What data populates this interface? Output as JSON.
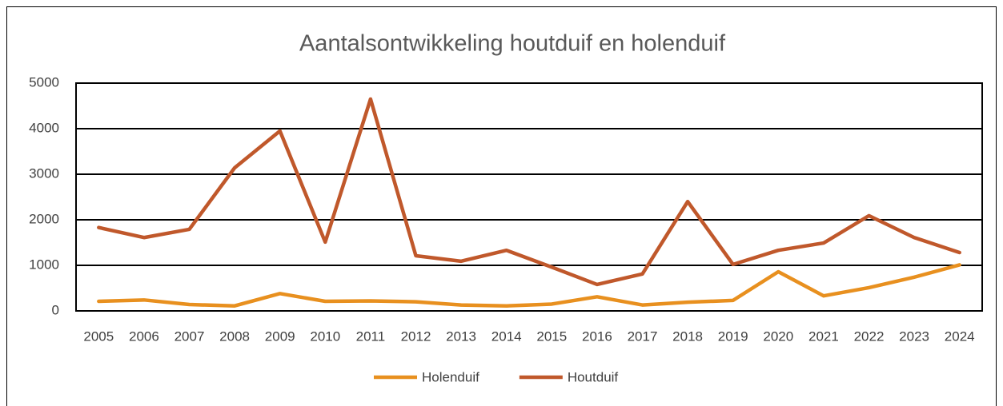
{
  "chart_data": {
    "type": "line",
    "title": "Aantalsontwikkeling houtduif en holenduif",
    "categories": [
      "2005",
      "2006",
      "2007",
      "2008",
      "2009",
      "2010",
      "2011",
      "2012",
      "2013",
      "2014",
      "2015",
      "2016",
      "2017",
      "2018",
      "2019",
      "2020",
      "2021",
      "2022",
      "2023",
      "2024"
    ],
    "series": [
      {
        "name": "Holenduif",
        "color": "#e8901f",
        "values": [
          210,
          240,
          140,
          110,
          380,
          210,
          220,
          200,
          130,
          110,
          150,
          310,
          130,
          190,
          230,
          860,
          330,
          510,
          740,
          1010
        ]
      },
      {
        "name": "Houtduif",
        "color": "#c0582b",
        "values": [
          1830,
          1610,
          1790,
          3140,
          3950,
          1510,
          4650,
          1210,
          1090,
          1330,
          960,
          580,
          810,
          2400,
          1020,
          1330,
          1490,
          2090,
          1610,
          1280
        ]
      }
    ],
    "ylim": [
      0,
      5000
    ],
    "yticks": [
      0,
      1000,
      2000,
      3000,
      4000,
      5000
    ],
    "grid": true,
    "legend": "bottom"
  }
}
